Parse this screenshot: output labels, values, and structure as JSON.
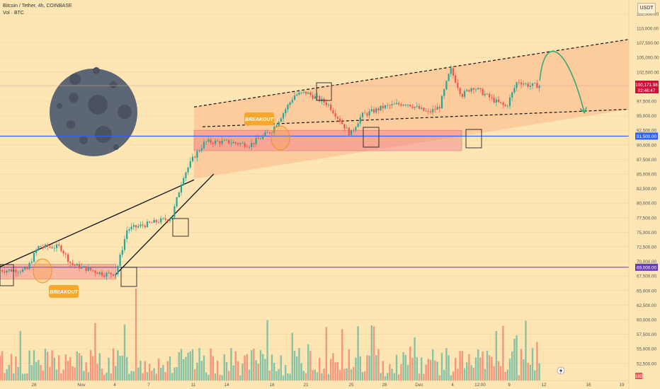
{
  "header": {
    "symbol_line": "Bitcoin / Tether, 4h, COINBASE",
    "volume_line": "Vol · BTC"
  },
  "currency_button": "USDT",
  "price_tag": {
    "price": "100,171.98",
    "countdown": "02:46:47"
  },
  "annotations": {
    "breakout_1": "BREAKOUT",
    "breakout_2": "BREAKOUT"
  },
  "colors": {
    "up": "#26a69a",
    "down": "#ef5350",
    "support_blue": "#2962ff",
    "support_purple": "#673ab7",
    "channel_fill": "#f9a37a",
    "label_orange": "#f9a72b",
    "projection": "#3aa77a",
    "moon": "#5d6675"
  },
  "chart_data": {
    "type": "candlestick",
    "title": "",
    "x_tick_labels": [
      "28",
      "Nov",
      "4",
      "7",
      "11",
      "14",
      "18",
      "21",
      "25",
      "28",
      "Dec",
      "4",
      "12:00",
      "9",
      "12",
      "16",
      "19"
    ],
    "y_tick_labels": [
      "112,500.00",
      "110,000.00",
      "107,500.00",
      "105,000.00",
      "102,500.00",
      "100,000.00",
      "97,500.00",
      "95,000.00",
      "92,500.00",
      "90,000.00",
      "87,500.00",
      "85,000.00",
      "82,500.00",
      "80,000.00",
      "77,500.00",
      "75,000.00",
      "72,500.00",
      "70,000.00",
      "67,500.00",
      "65,000.00",
      "62,500.00",
      "60,000.00",
      "57,500.00",
      "55,000.00",
      "52,500.00"
    ],
    "y_range": [
      50750,
      114000
    ],
    "level_labels": [
      {
        "price": 91500,
        "label": "91,500.00",
        "color": "#2962ff"
      },
      {
        "price": 69000,
        "label": "69,000.00",
        "color": "#673ab7"
      }
    ],
    "price_line": 100172,
    "volume_badge": "182",
    "key_points": [
      {
        "date": "Oct 25",
        "price": 68500
      },
      {
        "date": "Oct 28",
        "price": 68500
      },
      {
        "date": "Oct 29",
        "price": 72500
      },
      {
        "date": "Oct 31",
        "price": 72500
      },
      {
        "date": "Nov 1",
        "price": 69500
      },
      {
        "date": "Nov 4",
        "price": 67800
      },
      {
        "date": "Nov 5",
        "price": 68000
      },
      {
        "date": "Nov 6",
        "price": 75500
      },
      {
        "date": "Nov 10",
        "price": 77500
      },
      {
        "date": "Nov 11",
        "price": 84500
      },
      {
        "date": "Nov 12",
        "price": 88000
      },
      {
        "date": "Nov 13",
        "price": 90500
      },
      {
        "date": "Nov 15",
        "price": 90500
      },
      {
        "date": "Nov 17",
        "price": 90000
      },
      {
        "date": "Nov 19",
        "price": 92500
      },
      {
        "date": "Nov 21",
        "price": 98500
      },
      {
        "date": "Nov 22",
        "price": 99000
      },
      {
        "date": "Nov 24",
        "price": 97000
      },
      {
        "date": "Nov 26",
        "price": 91800
      },
      {
        "date": "Nov 27",
        "price": 95000
      },
      {
        "date": "Nov 29",
        "price": 96500
      },
      {
        "date": "Dec 1",
        "price": 97200
      },
      {
        "date": "Dec 3",
        "price": 95500
      },
      {
        "date": "Dec 4",
        "price": 96500
      },
      {
        "date": "Dec 5",
        "price": 103000
      },
      {
        "date": "Dec 6",
        "price": 98500
      },
      {
        "date": "Dec 7",
        "price": 100000
      },
      {
        "date": "Dec 9",
        "price": 97500
      },
      {
        "date": "Dec 10",
        "price": 96500
      },
      {
        "date": "Dec 11",
        "price": 101000
      },
      {
        "date": "Dec 12",
        "price": 100200
      },
      {
        "date": "Dec 13",
        "price": 100172
      }
    ],
    "channel": {
      "upper": [
        {
          "date": "Nov 12",
          "price": 96500
        },
        {
          "date": "Dec 20",
          "price": 107800
        }
      ],
      "lower": [
        {
          "date": "Nov 12",
          "price": 84200
        },
        {
          "date": "Dec 20",
          "price": 95800
        }
      ]
    },
    "breakout_zones": [
      {
        "from": "Oct 25",
        "to": "Nov 5",
        "low": 67000,
        "high": 69500
      },
      {
        "from": "Nov 12",
        "to": "Dec 6",
        "low": 89000,
        "high": 92500
      }
    ],
    "projection": [
      {
        "date": "Dec 13",
        "price": 101000
      },
      {
        "date": "Dec 14",
        "price": 106500
      },
      {
        "date": "Dec 16",
        "price": 103000
      },
      {
        "date": "Dec 17",
        "price": 95500
      }
    ]
  }
}
